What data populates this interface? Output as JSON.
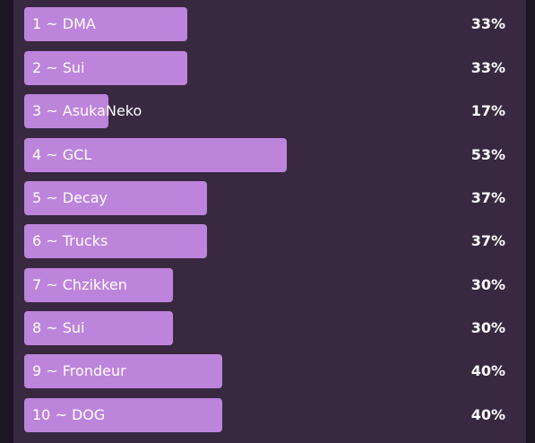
{
  "poll": {
    "options": [
      {
        "label": "1 ~ DMA",
        "percent_text": "33%",
        "percent": 33
      },
      {
        "label": "2 ~ Sui",
        "percent_text": "33%",
        "percent": 33
      },
      {
        "label": "3 ~ AsukaNeko",
        "percent_text": "17%",
        "percent": 17
      },
      {
        "label": "4 ~ GCL",
        "percent_text": "53%",
        "percent": 53
      },
      {
        "label": "5 ~ Decay",
        "percent_text": "37%",
        "percent": 37
      },
      {
        "label": "6 ~ Trucks",
        "percent_text": "37%",
        "percent": 37
      },
      {
        "label": "7 ~ Chzikken",
        "percent_text": "30%",
        "percent": 30
      },
      {
        "label": "8 ~ Sui",
        "percent_text": "30%",
        "percent": 30
      },
      {
        "label": "9 ~ Frondeur",
        "percent_text": "40%",
        "percent": 40
      },
      {
        "label": "10 ~ DOG",
        "percent_text": "40%",
        "percent": 40
      }
    ]
  },
  "colors": {
    "bar": "#bd84dc",
    "panel": "#382840",
    "text": "#ffffff"
  }
}
